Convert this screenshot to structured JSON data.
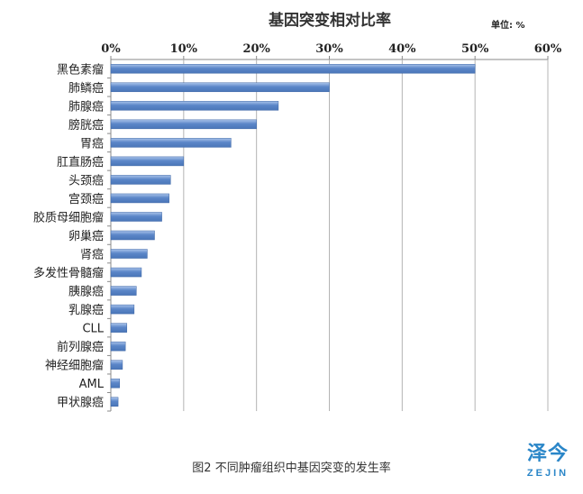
{
  "chart_data": {
    "type": "bar",
    "orientation": "horizontal",
    "title": "基因突变相对比率",
    "unit_label": "单位: %",
    "xlim": [
      0,
      60
    ],
    "x_ticks": [
      0,
      10,
      20,
      30,
      40,
      50,
      60
    ],
    "x_tick_labels": [
      "0%",
      "10%",
      "20%",
      "30%",
      "40%",
      "50%",
      "60%"
    ],
    "grid": true,
    "categories": [
      "黑色素瘤",
      "肺鳞癌",
      "肺腺癌",
      "膀胱癌",
      "胃癌",
      "肛直肠癌",
      "头颈癌",
      "宫颈癌",
      "胶质母细胞瘤",
      "卵巢癌",
      "肾癌",
      "多发性骨髓瘤",
      "胰腺癌",
      "乳腺癌",
      "CLL",
      "前列腺癌",
      "神经细胞瘤",
      "AML",
      "甲状腺癌"
    ],
    "values": [
      50,
      30,
      23,
      20,
      16.5,
      10,
      8.2,
      8,
      7,
      6,
      5,
      4.2,
      3.5,
      3.2,
      2.2,
      2,
      1.6,
      1.2,
      1
    ],
    "bar_color": "#5b86c8",
    "bar_highlight_color": "#a9c3ea"
  },
  "caption": "图2 不同肿瘤组织中基因突变的发生率",
  "logo": {
    "name_cn": "泽今",
    "name_en": "ZEJIN",
    "color": "#2a86c8"
  }
}
